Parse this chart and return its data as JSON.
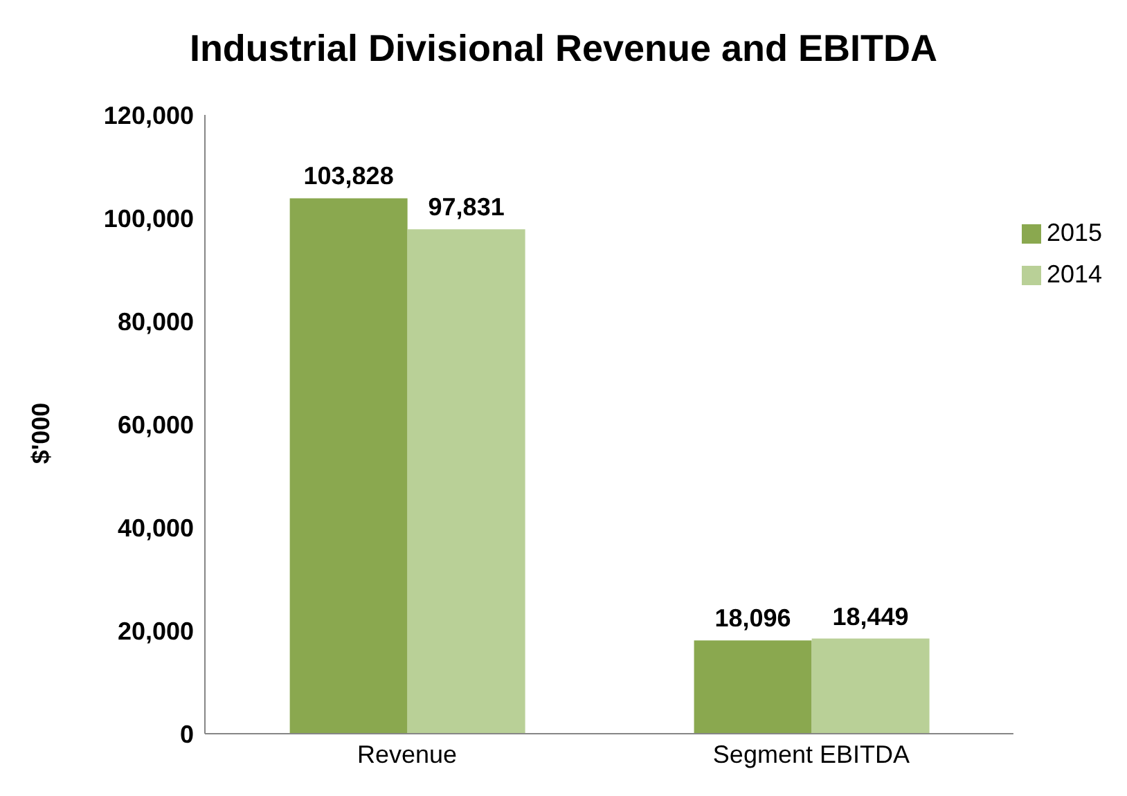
{
  "chart_data": {
    "type": "bar",
    "title": "Industrial Divisional Revenue and EBITDA",
    "ylabel": "$'000",
    "categories": [
      "Revenue",
      "Segment EBITDA"
    ],
    "series": [
      {
        "name": "2015",
        "color": "#8aa84f",
        "values": [
          103828,
          18096
        ],
        "value_labels": [
          "103,828",
          "18,096"
        ]
      },
      {
        "name": "2014",
        "color": "#b9d097",
        "values": [
          97831,
          18449
        ],
        "value_labels": [
          "97,831",
          "18,449"
        ]
      }
    ],
    "ylim": [
      0,
      120000
    ],
    "yticks": [
      {
        "value": 0,
        "label": "0"
      },
      {
        "value": 20000,
        "label": "20,000"
      },
      {
        "value": 40000,
        "label": "40,000"
      },
      {
        "value": 60000,
        "label": "60,000"
      },
      {
        "value": 80000,
        "label": "80,000"
      },
      {
        "value": 100000,
        "label": "100,000"
      },
      {
        "value": 120000,
        "label": "120,000"
      }
    ],
    "legend": "right",
    "grid": false
  }
}
